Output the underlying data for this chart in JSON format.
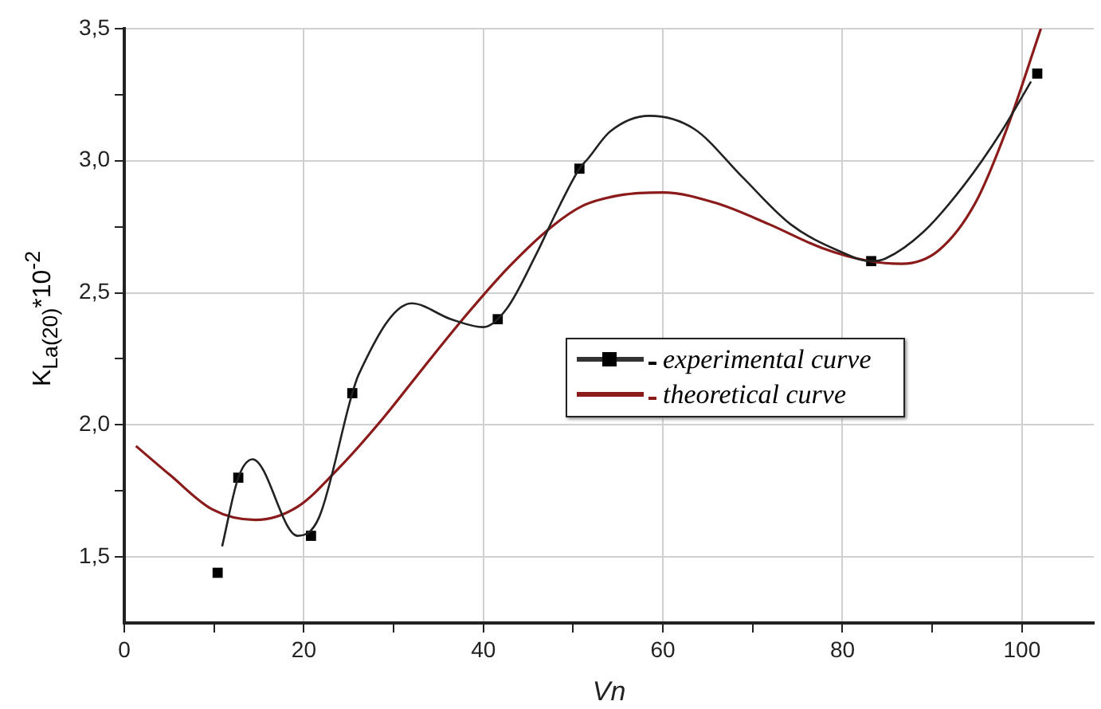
{
  "chart_data": {
    "type": "line",
    "xlabel": "Vn",
    "ylabel": "K$_{La(20)}$*10$^{-2}$",
    "xlim": [
      0,
      108
    ],
    "ylim": [
      1.25,
      3.5
    ],
    "xticks": [
      0,
      {
        "value": 10,
        "label": null
      },
      20,
      {
        "value": 30,
        "label": null
      },
      40,
      {
        "value": 50,
        "label": null
      },
      60,
      {
        "value": 70,
        "label": null
      },
      80,
      {
        "value": 90,
        "label": null
      },
      100
    ],
    "yticks": [
      {
        "value": 1.5,
        "label": "1,5"
      },
      {
        "value": 1.75,
        "label": null
      },
      {
        "value": 2,
        "label": "2,0"
      },
      {
        "value": 2.25,
        "label": null
      },
      {
        "value": 2.5,
        "label": "2,5"
      },
      {
        "value": 2.75,
        "label": null
      },
      {
        "value": 3,
        "label": "3,0"
      },
      {
        "value": 3.25,
        "label": null
      },
      {
        "value": 3.5,
        "label": "3,5"
      }
    ],
    "grid": true,
    "legend": "right",
    "series": [
      {
        "name": "experimental curve",
        "type": "scatter",
        "marker": "square",
        "color": "#000000",
        "x": [
          10.4,
          12.7,
          20.8,
          25.4,
          41.6,
          50.7,
          83.2,
          101.7
        ],
        "values": [
          1.44,
          1.8,
          1.58,
          2.12,
          2.4,
          2.97,
          2.62,
          3.33
        ]
      },
      {
        "name": "theoretical curve",
        "type": "line",
        "color": "#8b1a1a",
        "x": [
          1.3,
          5.1,
          9.8,
          14.6,
          19.3,
          24.0,
          28.7,
          33.4,
          38.2,
          42.9,
          47.6,
          51.1,
          55.3,
          60.0,
          65.9,
          71.8,
          77.7,
          83.0,
          86.6,
          90.7,
          94.8,
          98.3,
          102.1
        ],
        "values": [
          1.92,
          1.81,
          1.68,
          1.64,
          1.69,
          1.84,
          2.02,
          2.22,
          2.42,
          2.6,
          2.75,
          2.83,
          2.87,
          2.88,
          2.84,
          2.76,
          2.67,
          2.62,
          2.61,
          2.66,
          2.84,
          3.12,
          3.5
        ]
      },
      {
        "type": "line",
        "color": "#222222",
        "x": [
          10.9,
          12.7,
          14.3,
          19.3,
          21.7,
          25.4,
          26.1,
          32.0,
          36.4,
          40.0,
          42.6,
          45.8,
          48.2,
          50.7,
          51.7,
          54.1,
          58.5,
          63.5,
          68.8,
          74.2,
          79.5,
          83.2,
          84.8,
          89.0,
          93.6,
          97.7,
          101.0
        ],
        "values": [
          1.54,
          1.8,
          1.87,
          1.58,
          1.65,
          2.12,
          2.19,
          2.46,
          2.4,
          2.37,
          2.44,
          2.64,
          2.81,
          2.97,
          3.01,
          3.11,
          3.17,
          3.12,
          2.94,
          2.76,
          2.66,
          2.62,
          2.63,
          2.73,
          2.91,
          3.11,
          3.3
        ]
      }
    ]
  }
}
